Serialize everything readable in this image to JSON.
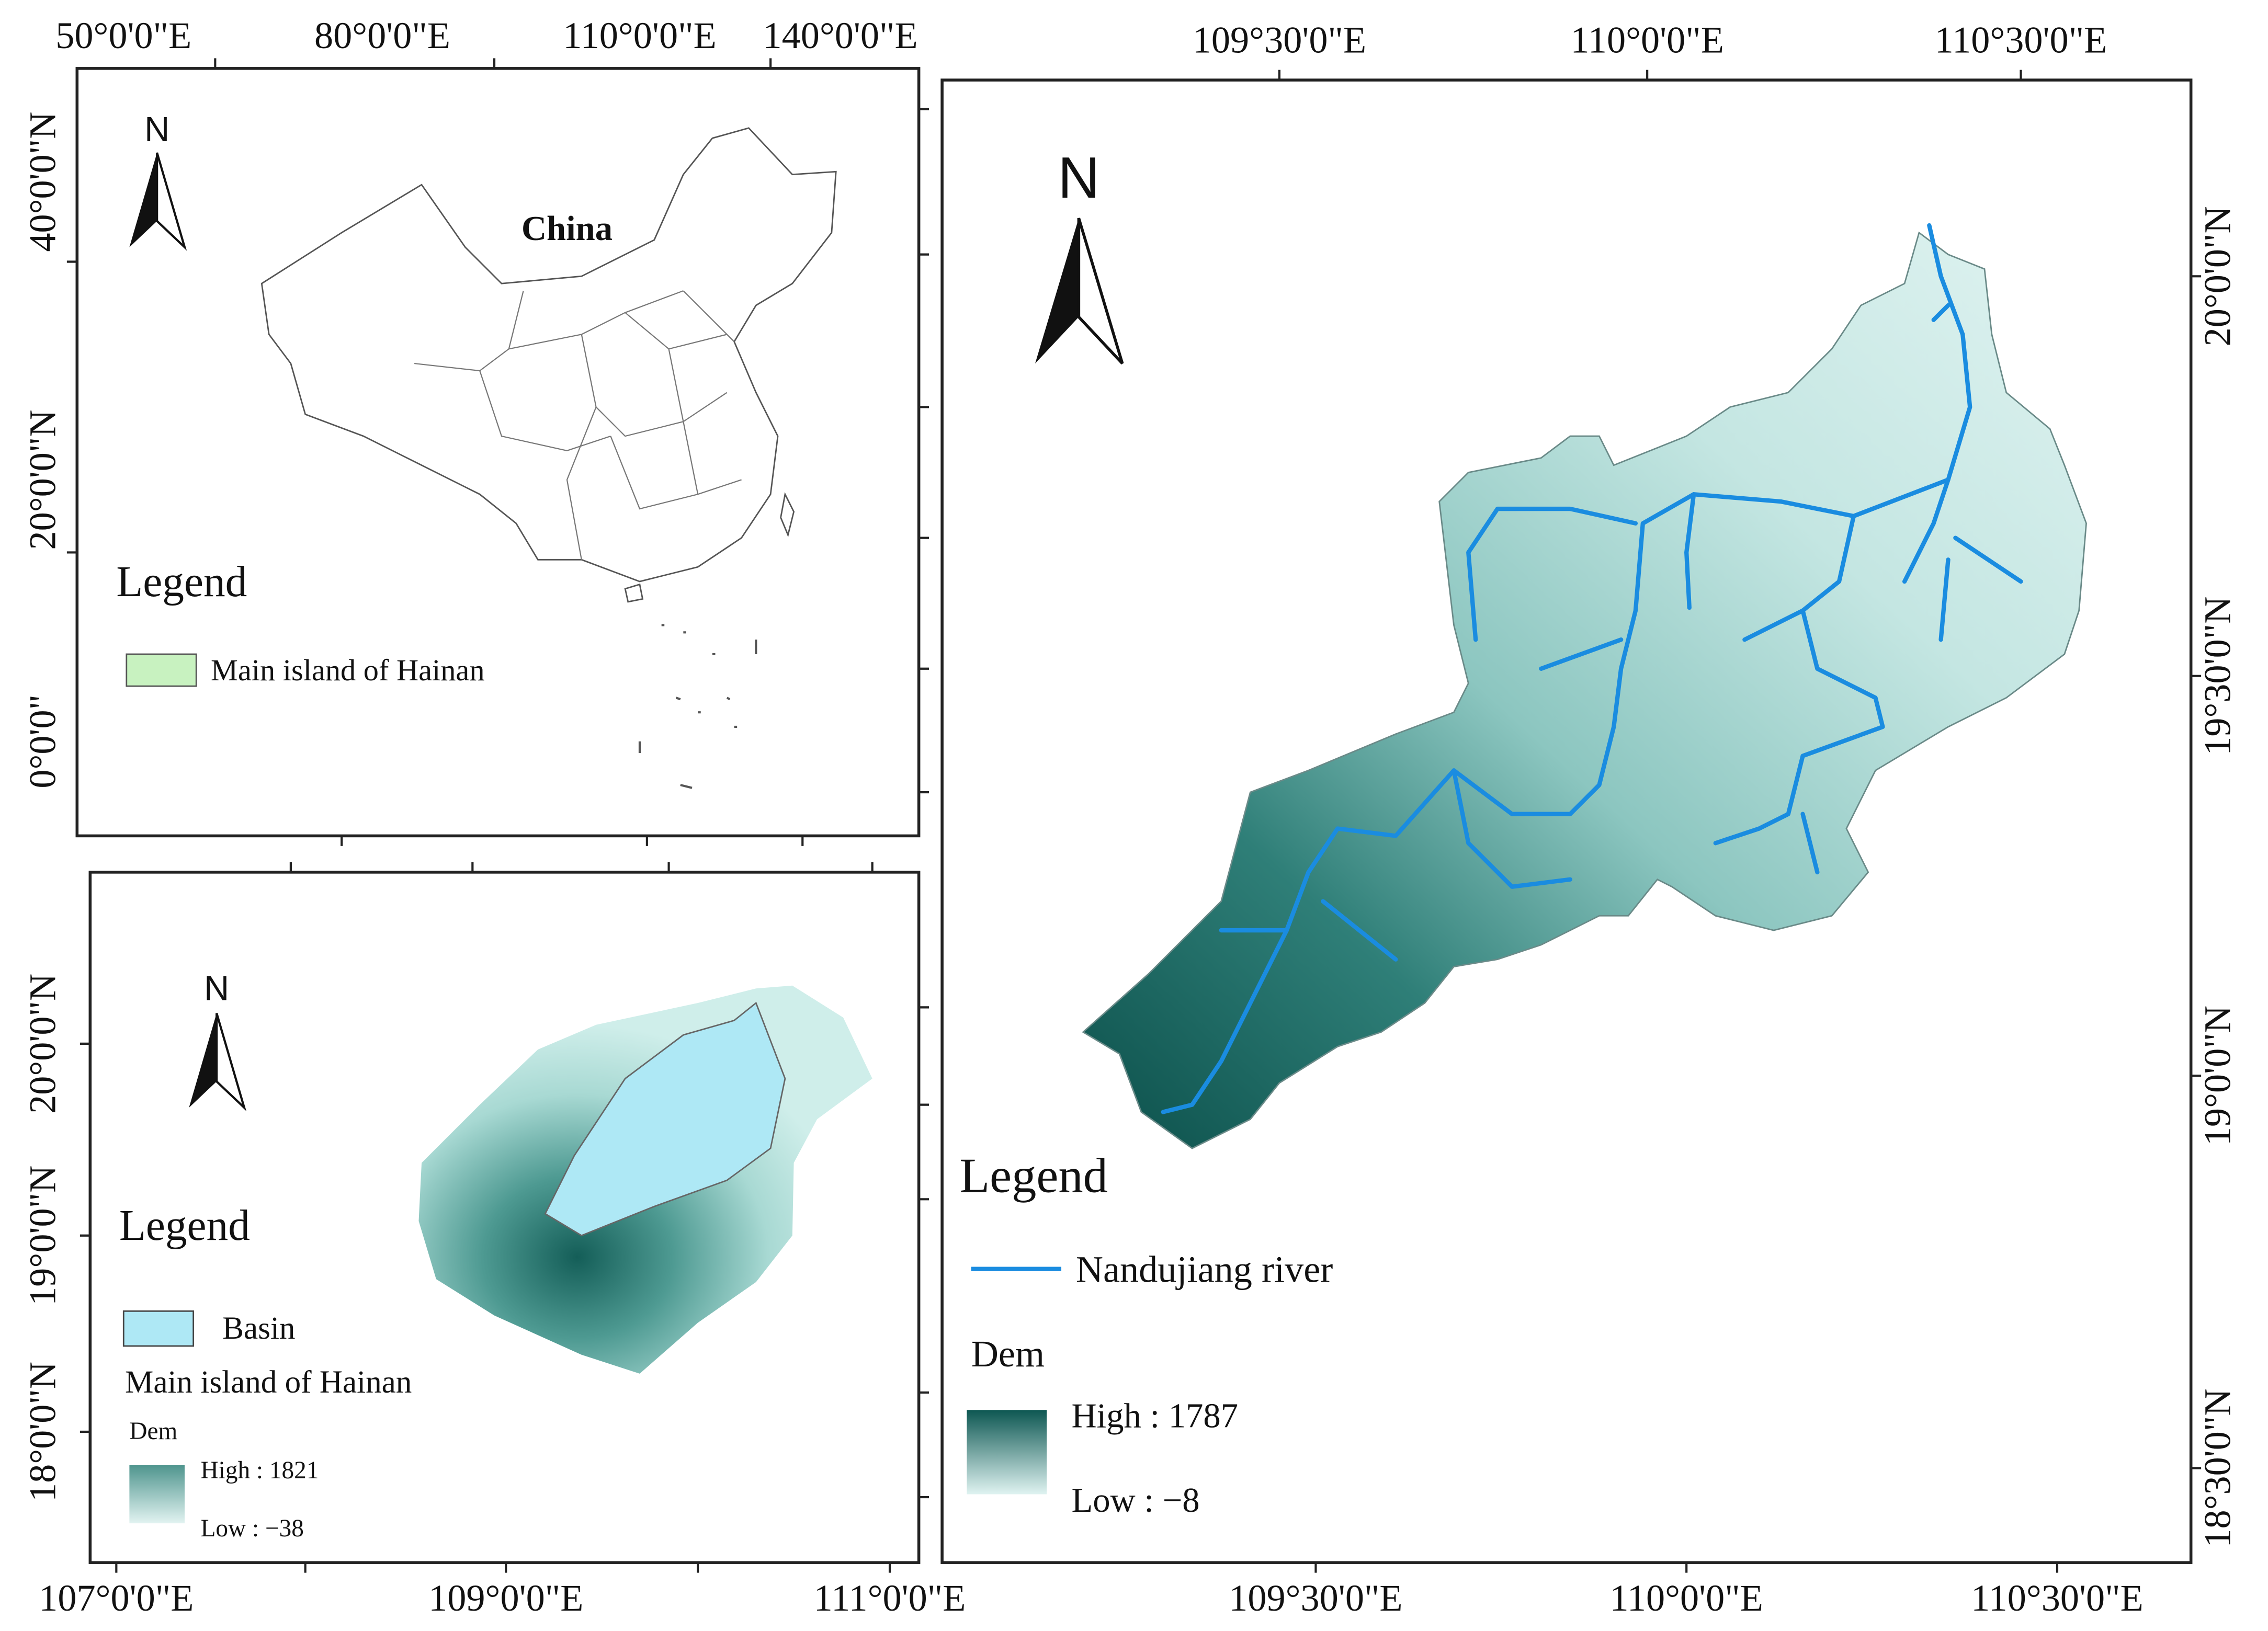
{
  "china_panel": {
    "top_ticks": [
      "50°0'0\"E",
      "80°0'0\"E",
      "110°0'0\"E",
      "140°0'0\"E"
    ],
    "left_ticks": [
      "40°0'0\"N",
      "20°0'0\"N",
      "0°0'0\""
    ],
    "label": "China",
    "north": "N",
    "legend": {
      "title": "Legend",
      "item": "Main island of Hainan"
    }
  },
  "hainan_panel": {
    "left_ticks": [
      "20°0'0\"N",
      "19°0'0\"N",
      "18°0'0\"N"
    ],
    "bottom_ticks": [
      "107°0'0\"E",
      "109°0'0\"E",
      "111°0'0\"E"
    ],
    "north": "N",
    "legend": {
      "title": "Legend",
      "basin": "Basin",
      "island": "Main island of Hainan",
      "dem": "Dem",
      "high": "High : 1821",
      "low": "Low : −38"
    }
  },
  "basin_panel": {
    "top_ticks": [
      "109°30'0\"E",
      "110°0'0\"E",
      "110°30'0\"E"
    ],
    "bottom_ticks": [
      "109°30'0\"E",
      "110°0'0\"E",
      "110°30'0\"E"
    ],
    "right_ticks": [
      "20°0'0\"N",
      "19°30'0\"N",
      "19°0'0\"N",
      "18°30'0\"N"
    ],
    "north": "N",
    "legend": {
      "title": "Legend",
      "river": "Nandujiang river",
      "dem": "Dem",
      "high": "High : 1787",
      "low": "Low : −8"
    }
  }
}
